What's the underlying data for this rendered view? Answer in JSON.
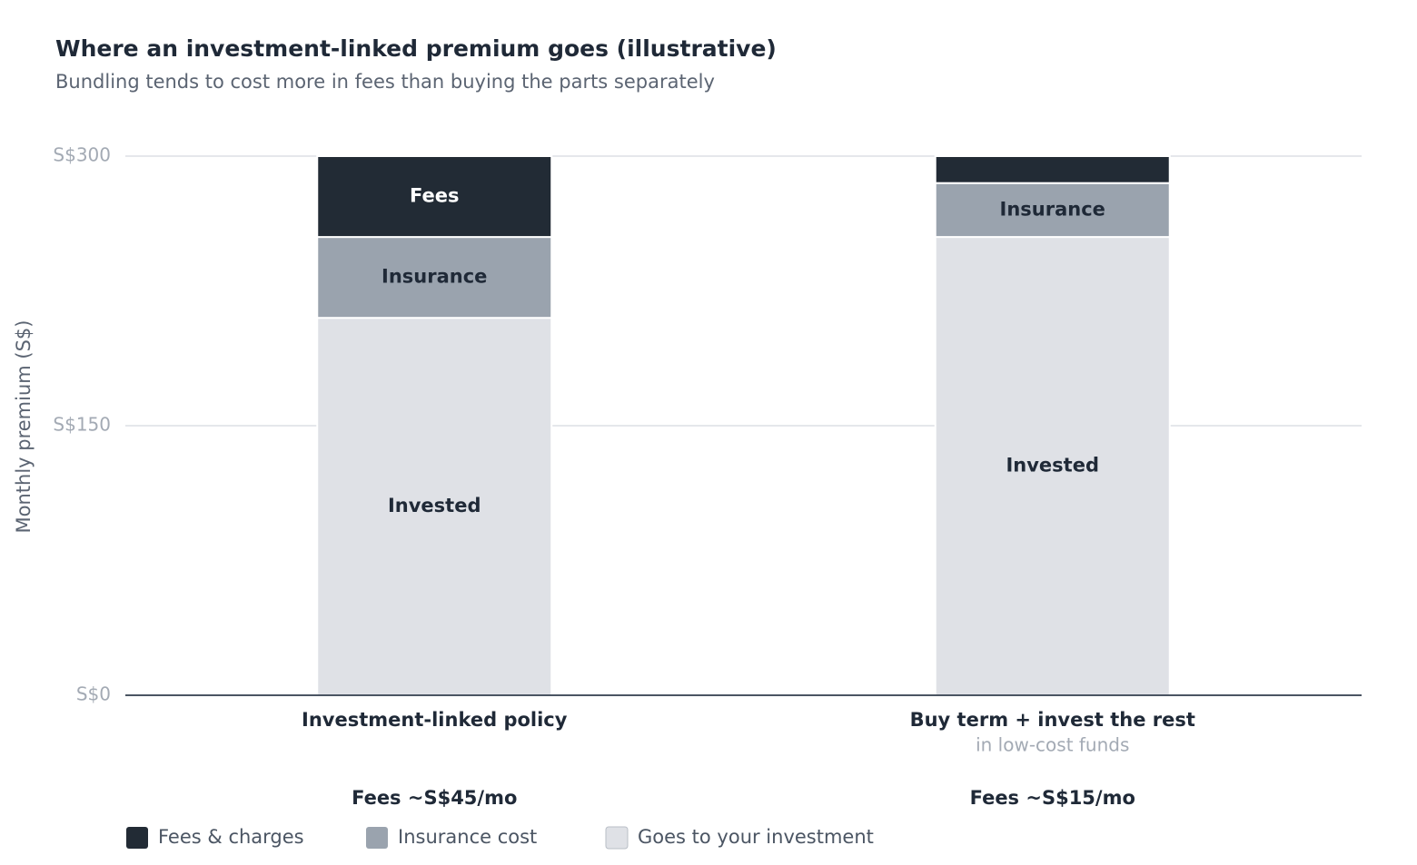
{
  "chart_data": {
    "type": "stacked_bar",
    "title": "Where an investment-linked premium goes (illustrative)",
    "subtitle": "Bundling tends to cost more in fees than buying the parts separately",
    "y_label": "Monthly premium (S$)",
    "categories": [
      "Investment-linked policy",
      "Buy term + invest the rest"
    ],
    "category_sublabels": [
      null,
      "in low-cost funds"
    ],
    "category_notes": [
      "Fees ~S$45/mo",
      "Fees ~S$15/mo"
    ],
    "series": [
      {
        "name": "Fees & charges",
        "color": "#222b35",
        "label_color": "#ffffff",
        "values": [
          45,
          15
        ],
        "labels": [
          "Fees",
          null
        ]
      },
      {
        "name": "Insurance cost",
        "color": "#9aa3ae",
        "label_color": "#1f2937",
        "values": [
          45,
          30
        ],
        "labels": [
          "Insurance",
          "Insurance"
        ]
      },
      {
        "name": "Goes to your investment",
        "color": "#dfe1e6",
        "label_color": "#1f2937",
        "values": [
          210,
          255
        ],
        "labels": [
          "Invested",
          "Invested"
        ]
      }
    ],
    "ylim": [
      0,
      300
    ],
    "yticks": [
      {
        "value": 0,
        "label": "S$0"
      },
      {
        "value": 150,
        "label": "S$150"
      },
      {
        "value": 300,
        "label": "S$300"
      }
    ],
    "grid": true
  }
}
